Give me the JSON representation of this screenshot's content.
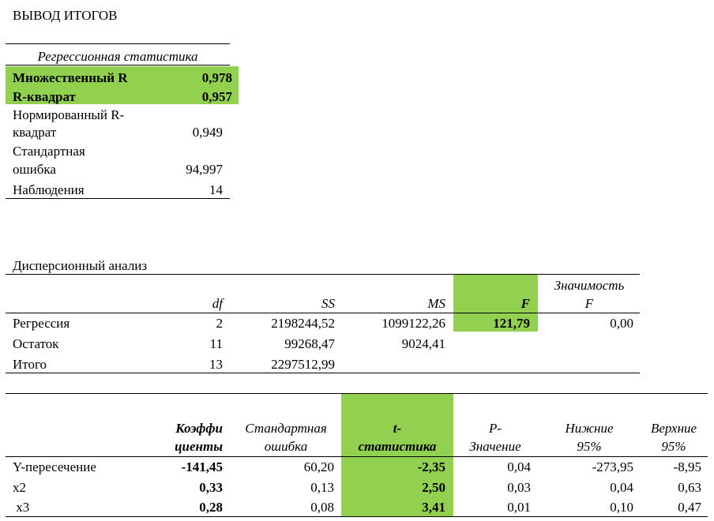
{
  "title": "ВЫВОД ИТОГОВ",
  "colors": {
    "highlight": "#92d050"
  },
  "regression_stats": {
    "header": "Регрессионная статистика",
    "rows": [
      {
        "label": "Множественный R",
        "value": "0,978"
      },
      {
        "label": "R-квадрат",
        "value": "0,957"
      },
      {
        "label_line1": "Нормированный R-",
        "label_line2": "квадрат",
        "value": "0,949"
      },
      {
        "label_line1": "Стандартная",
        "label_line2": "ошибка",
        "value": "94,997"
      },
      {
        "label": "Наблюдения",
        "value": "14"
      }
    ]
  },
  "anova": {
    "title": "Дисперсионный анализ",
    "headers": {
      "df": "df",
      "ss": "SS",
      "ms": "MS",
      "f": "F",
      "sig_line1": "Значимость",
      "sig_line2": "F"
    },
    "rows": [
      {
        "label": "Регрессия",
        "df": "2",
        "ss": "2198244,52",
        "ms": "1099122,26",
        "f": "121,79",
        "sig": "0,00"
      },
      {
        "label": "Остаток",
        "df": "11",
        "ss": "99268,47",
        "ms": "9024,41"
      },
      {
        "label": "Итого",
        "df": "13",
        "ss": "2297512,99"
      }
    ]
  },
  "coefficients": {
    "headers": {
      "coef_line1": "Коэффи",
      "coef_line2": "циенты",
      "se_line1": "Стандартная",
      "se_line2": "ошибка",
      "t_line1": "t-",
      "t_line2": "статистика",
      "p_line1": "P-",
      "p_line2": "Значение",
      "lower_line1": "Нижние",
      "lower_line2": "95%",
      "upper_line1": "Верхние",
      "upper_line2": "95%"
    },
    "rows": [
      {
        "label": "Y-пересечение",
        "coef": "-141,45",
        "se": "60,20",
        "t": "-2,35",
        "p": "0,04",
        "lower": "-273,95",
        "upper": "-8,95"
      },
      {
        "label": "x2",
        "coef": "0,33",
        "se": "0,13",
        "t": "2,50",
        "p": "0,03",
        "lower": "0,04",
        "upper": "0,63"
      },
      {
        "label": " x3",
        "coef": "0,28",
        "se": "0,08",
        "t": "3,41",
        "p": "0,01",
        "lower": "0,10",
        "upper": "0,47"
      }
    ]
  }
}
